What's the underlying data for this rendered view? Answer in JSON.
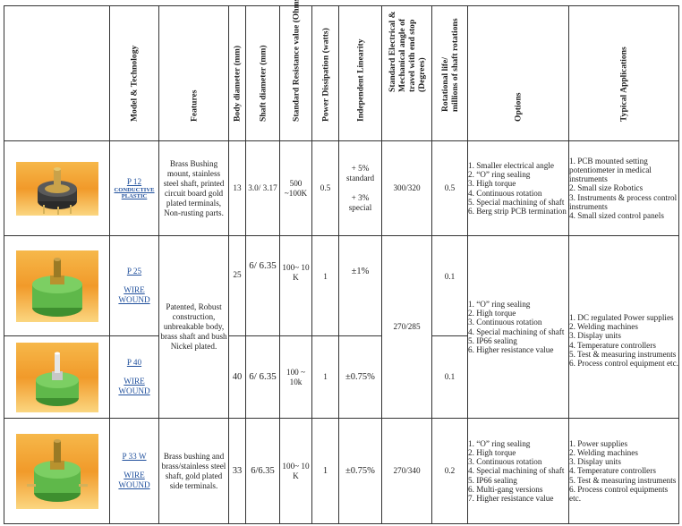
{
  "headers": {
    "model": "Model & Technology",
    "features": "Features",
    "body_dia": "Body diameter (mm)",
    "shaft_dia": "Shaft diameter (mm)",
    "resistance": "Standard Resistance value (Ohms)",
    "power": "Power Dissipation (watts)",
    "linearity": "Independent Linearity",
    "angle_1": "Standard Electrical &",
    "angle_2": "Mechanical angle of",
    "angle_3": "travel with end stop",
    "angle_4": "(Degrees)",
    "life_1": "Rotational life/",
    "life_2": "millions of shaft  rotations",
    "options": "Options",
    "applications": "Typical Applications"
  },
  "rows": {
    "p12": {
      "model": "P 12",
      "tech": "CONDUCTIVE PLASTIC",
      "features": "Brass Bushing mount, stainless steel shaft, printed circuit board gold plated terminals, Non-rusting parts.",
      "body": "13",
      "shaft": "3.0/ 3.17",
      "res_1": "500",
      "res_2": "~100K",
      "power": "0.5",
      "lin_1": "+ 5%",
      "lin_2": "standard",
      "lin_3": "+ 3%",
      "lin_4": "special",
      "angle": "300/320",
      "life": "0.5",
      "options": [
        "1. Smaller electrical angle",
        "2. “O” ring sealing",
        "3. High torque",
        "4. Continuous rotation",
        "5. Special machining of shaft",
        "6. Berg strip PCB termination"
      ],
      "apps": [
        "1. PCB mounted setting potentiometer in medical instruments",
        "2. Small size Robotics",
        "3. Instruments & process control instruments",
        "4. Small sized control panels"
      ]
    },
    "p25": {
      "model": "P 25",
      "tech": "WIRE WOUND",
      "body": "25",
      "shaft": "6/ 6.35",
      "res": "100~ 10 K",
      "power": "1",
      "lin": "±1%",
      "life": "0.1"
    },
    "p40": {
      "model": "P 40",
      "tech": "WIRE WOUND",
      "body": "40",
      "shaft": "6/ 6.35",
      "res": "100 ~ 10k",
      "power": "1",
      "lin": "±0.75%",
      "life": "0.1"
    },
    "shared": {
      "features": "Patented, Robust construction, unbreakable body, brass shaft and bush Nickel plated.",
      "angle": "270/285",
      "options": [
        "1. “O” ring sealing",
        "2. High torque",
        "3. Continuous rotation",
        "4. Special machining of shaft",
        "5. IP66 sealing",
        "6. Higher resistance value"
      ],
      "apps": [
        "1. DC regulated Power supplies",
        "2.  Welding machines",
        "3.  Display units",
        "4.  Temperature controllers",
        "5.  Test & measuring instruments",
        "6.  Process control equipment etc."
      ]
    },
    "p33w": {
      "model": "P 33 W",
      "tech": "WIRE WOUND",
      "features": "Brass bushing and brass/stainless steel shaft, gold plated side terminals.",
      "body": "33",
      "shaft": "6/6.35",
      "res": "100~ 10 K",
      "power": "1",
      "lin": "±0.75%",
      "angle": "270/340",
      "life": "0.2",
      "options": [
        "1. “O” ring sealing",
        "2. High torque",
        "3. Continuous rotation",
        "4. Special machining of shaft",
        "5. IP66 sealing",
        "6. Multi-gang versions",
        "7. Higher resistance value"
      ],
      "apps": [
        "1. Power supplies",
        "2. Welding machines",
        "3. Display units",
        "4. Temperature controllers",
        "5. Test & measuring instruments",
        "6. Process control equipments etc."
      ]
    }
  },
  "colors": {
    "link": "#1f4f9c",
    "photo_orange": "#f19a2a",
    "pot_green": "#5fb84a",
    "pot_brass": "#b8922e"
  }
}
